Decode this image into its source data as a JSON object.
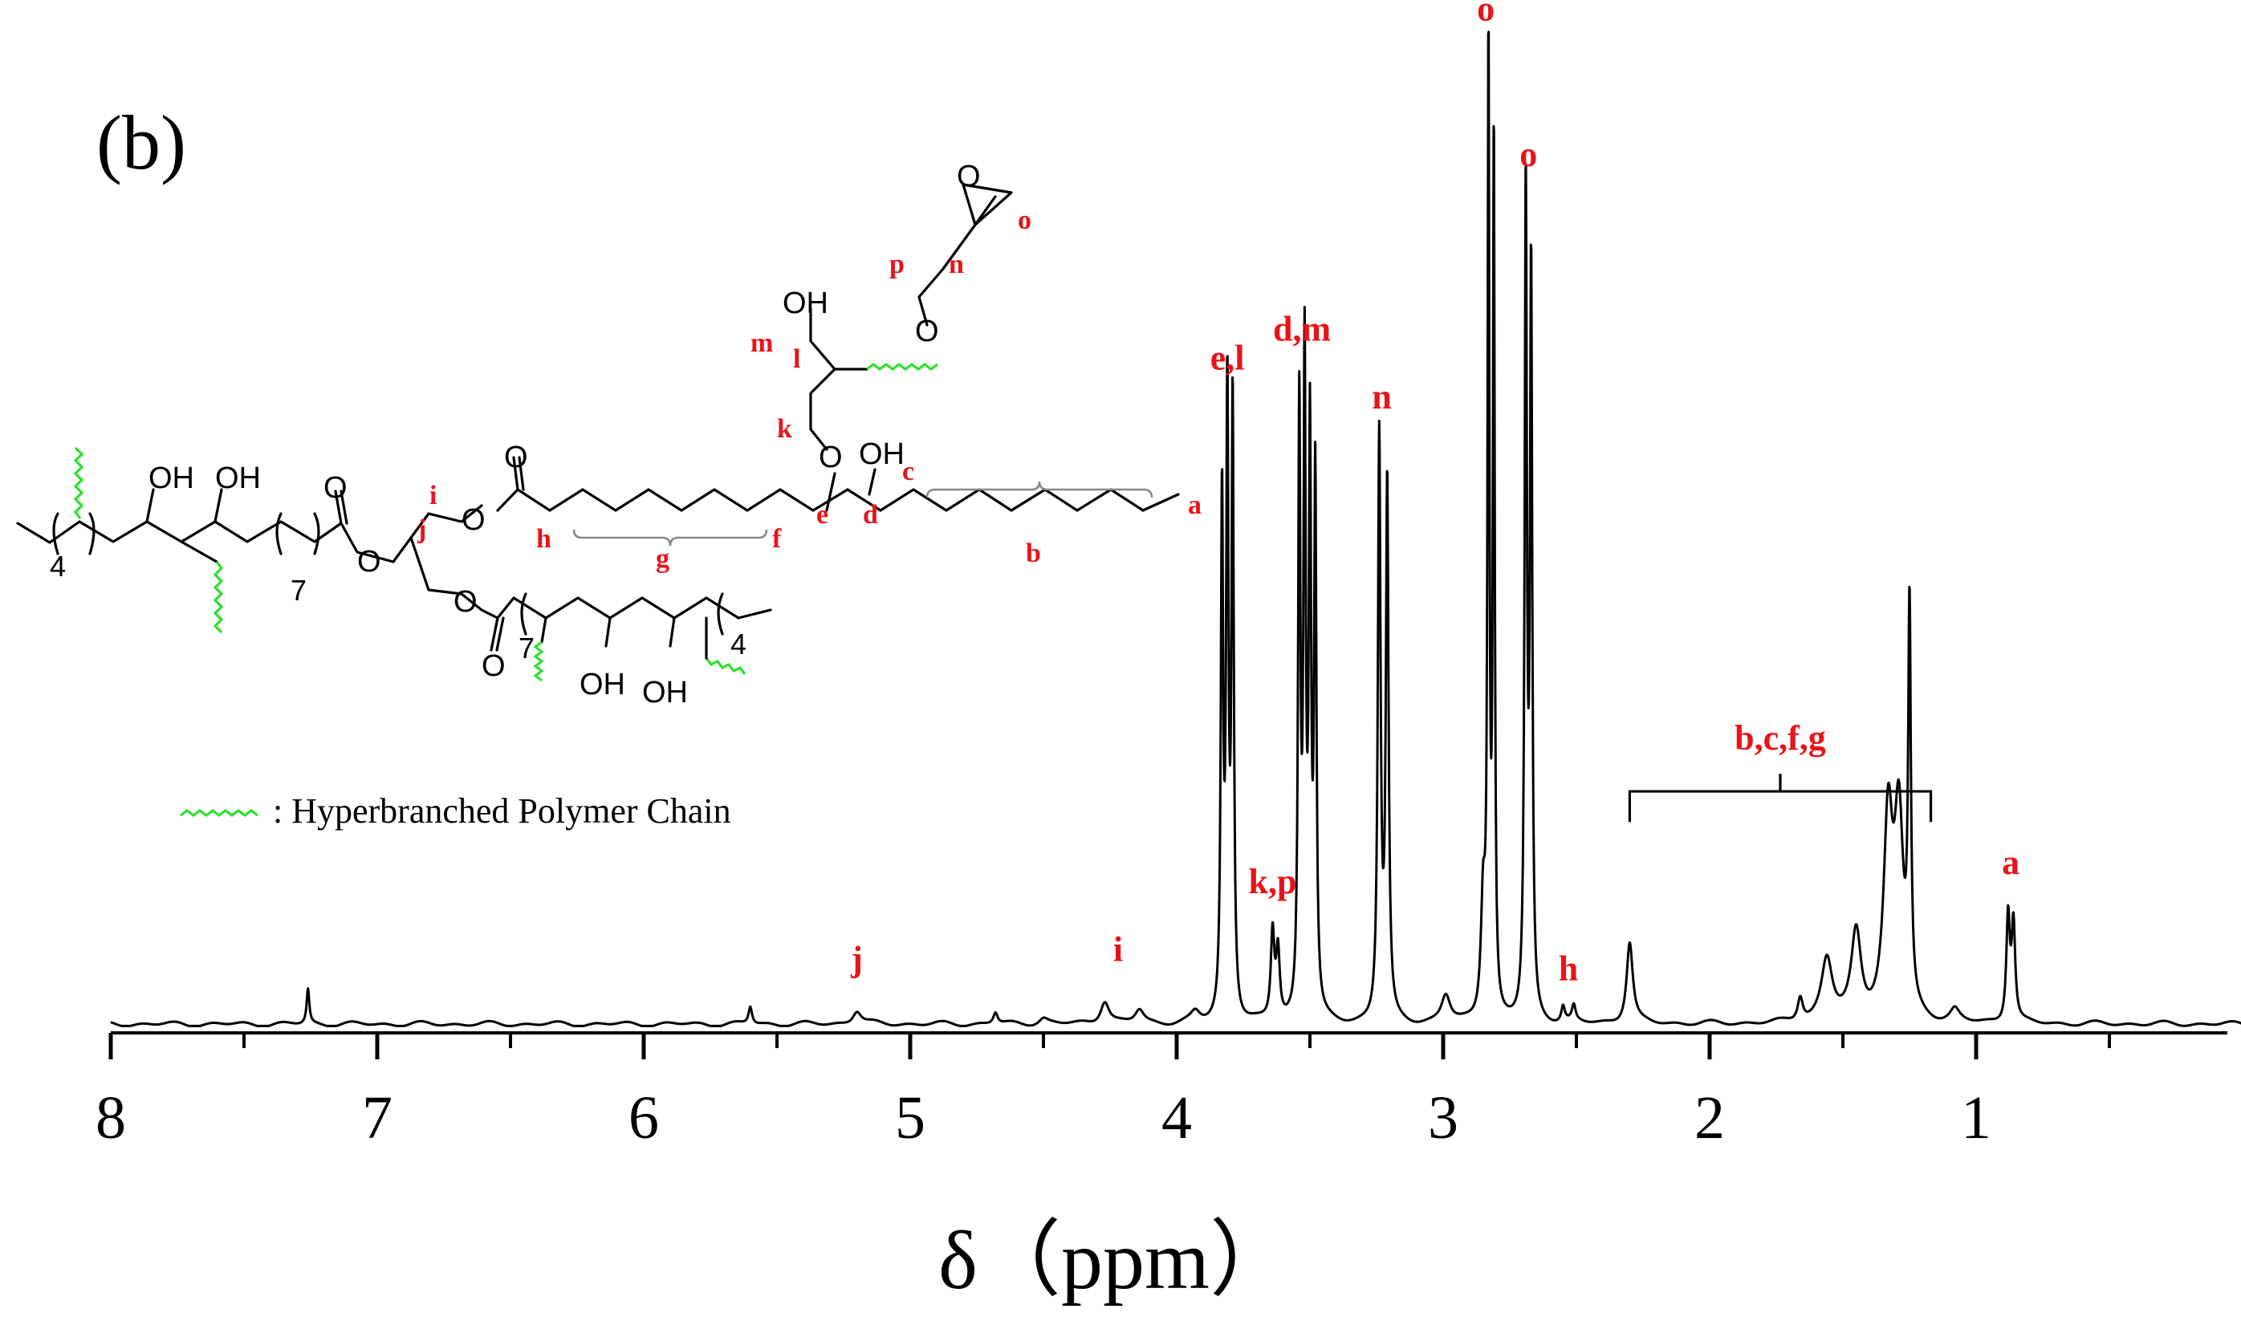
{
  "chart_data": {
    "type": "line",
    "panel_label": "(b)",
    "xlabel": "δ（ppm）",
    "xlim": [
      8.0,
      0.0
    ],
    "x_reversed": true,
    "x_ticks": [
      8,
      7,
      6,
      5,
      4,
      3,
      2,
      1
    ],
    "ylim": [
      0,
      1.0
    ],
    "grid": false,
    "line_color": "#000000",
    "annotation_color": "#e8141a",
    "peaks": [
      {
        "shift": 7.26,
        "height": 0.036,
        "width": 0.006
      },
      {
        "shift": 5.6,
        "height": 0.018,
        "width": 0.008
      },
      {
        "shift": 5.2,
        "height": 0.014,
        "width": 0.02
      },
      {
        "shift": 4.68,
        "height": 0.012,
        "width": 0.01
      },
      {
        "shift": 4.5,
        "height": 0.006,
        "width": 0.02
      },
      {
        "shift": 4.27,
        "height": 0.024,
        "width": 0.02
      },
      {
        "shift": 4.14,
        "height": 0.014,
        "width": 0.02
      },
      {
        "shift": 3.93,
        "height": 0.01,
        "width": 0.02
      },
      {
        "shift": 3.83,
        "height": 0.53,
        "width": 0.005
      },
      {
        "shift": 3.81,
        "height": 0.63,
        "width": 0.005
      },
      {
        "shift": 3.79,
        "height": 0.63,
        "width": 0.005
      },
      {
        "shift": 3.64,
        "height": 0.09,
        "width": 0.008
      },
      {
        "shift": 3.62,
        "height": 0.07,
        "width": 0.008
      },
      {
        "shift": 3.54,
        "height": 0.62,
        "width": 0.005
      },
      {
        "shift": 3.52,
        "height": 0.66,
        "width": 0.005
      },
      {
        "shift": 3.5,
        "height": 0.58,
        "width": 0.005
      },
      {
        "shift": 3.48,
        "height": 0.55,
        "width": 0.005
      },
      {
        "shift": 3.24,
        "height": 0.6,
        "width": 0.006
      },
      {
        "shift": 3.21,
        "height": 0.55,
        "width": 0.006
      },
      {
        "shift": 2.99,
        "height": 0.028,
        "width": 0.02
      },
      {
        "shift": 2.85,
        "height": 0.12,
        "width": 0.01
      },
      {
        "shift": 2.83,
        "height": 0.99,
        "width": 0.004
      },
      {
        "shift": 2.81,
        "height": 0.9,
        "width": 0.004
      },
      {
        "shift": 2.69,
        "height": 0.85,
        "width": 0.005
      },
      {
        "shift": 2.67,
        "height": 0.76,
        "width": 0.005
      },
      {
        "shift": 2.55,
        "height": 0.016,
        "width": 0.008
      },
      {
        "shift": 2.51,
        "height": 0.016,
        "width": 0.008
      },
      {
        "shift": 2.3,
        "height": 0.084,
        "width": 0.014
      },
      {
        "shift": 1.66,
        "height": 0.025,
        "width": 0.012
      },
      {
        "shift": 1.56,
        "height": 0.065,
        "width": 0.025
      },
      {
        "shift": 1.45,
        "height": 0.09,
        "width": 0.022
      },
      {
        "shift": 1.33,
        "height": 0.2,
        "width": 0.02
      },
      {
        "shift": 1.29,
        "height": 0.2,
        "width": 0.02
      },
      {
        "shift": 1.25,
        "height": 0.4,
        "width": 0.006
      },
      {
        "shift": 1.08,
        "height": 0.012,
        "width": 0.02
      },
      {
        "shift": 0.88,
        "height": 0.11,
        "width": 0.008
      },
      {
        "shift": 0.86,
        "height": 0.1,
        "width": 0.008
      }
    ],
    "annotations": [
      {
        "text": "j",
        "x": 5.2,
        "y": 0.055
      },
      {
        "text": "i",
        "x": 4.22,
        "y": 0.065
      },
      {
        "text": "k,p",
        "x": 3.64,
        "y": 0.135
      },
      {
        "text": "e,l",
        "x": 3.81,
        "y": 0.675
      },
      {
        "text": "d,m",
        "x": 3.53,
        "y": 0.705
      },
      {
        "text": "n",
        "x": 3.23,
        "y": 0.635
      },
      {
        "text": "o",
        "x": 2.84,
        "y": 1.035
      },
      {
        "text": "o",
        "x": 2.68,
        "y": 0.885
      },
      {
        "text": "h",
        "x": 2.53,
        "y": 0.045
      },
      {
        "text": "a",
        "x": 0.87,
        "y": 0.155
      }
    ],
    "range_annotation": {
      "text": "b,c,f,g",
      "x_from": 2.3,
      "x_to": 1.17,
      "y": 0.24
    }
  },
  "structure": {
    "labels": {
      "a": "a",
      "b": "b",
      "c": "c",
      "d": "d",
      "e": "e",
      "f": "f",
      "g": "g",
      "h": "h",
      "i": "i",
      "j": "j",
      "k": "k",
      "l": "l",
      "m": "m",
      "n": "n",
      "o": "o",
      "p": "p"
    },
    "atoms": {
      "oh": "OH",
      "o": "O",
      "four": "4",
      "seven": "7"
    },
    "legend_text": ": Hyperbranched Polymer Chain",
    "chain_color": "#2ee02e"
  }
}
